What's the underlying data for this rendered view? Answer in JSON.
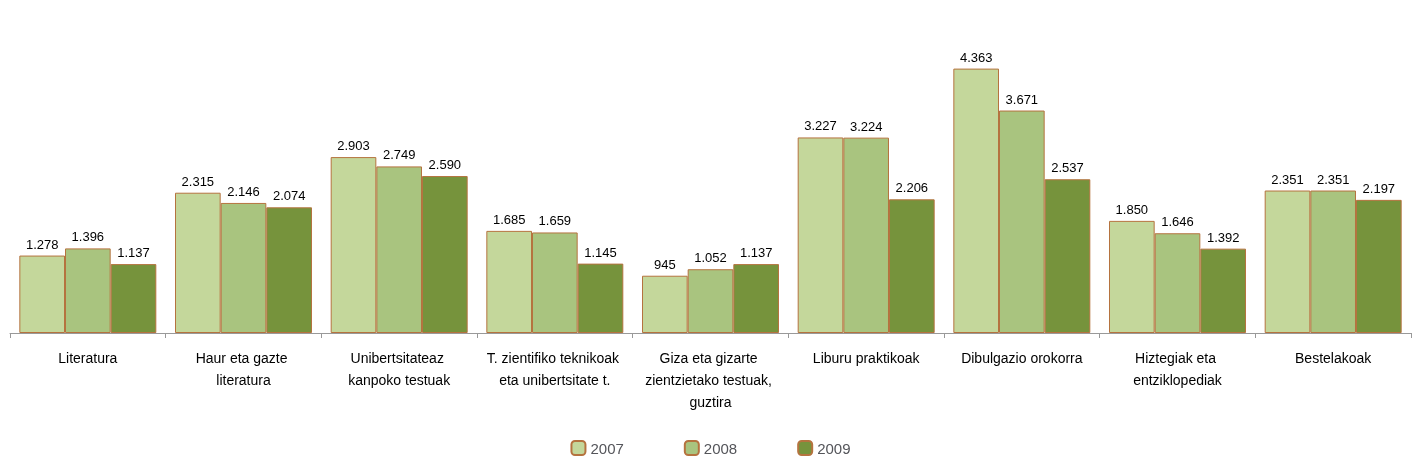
{
  "chart_data": {
    "type": "bar",
    "categories": [
      "Literatura",
      "Haur eta gazte literatura",
      "Unibertsitateaz kanpoko testuak",
      "T. zientifiko teknikoak eta unibertsitate t.",
      "Giza eta gizarte zientzietako testuak, guztira",
      "Liburu praktikoak",
      "Dibulgazio orokorra",
      "Hiztegiak eta entziklopediak",
      "Bestelakoak"
    ],
    "series": [
      {
        "name": "2007",
        "color": "#c4d79b",
        "values": [
          1278,
          2315,
          2903,
          1685,
          945,
          3227,
          4363,
          1850,
          2351
        ],
        "value_labels": [
          "1.278",
          "2.315",
          "2.903",
          "1.685",
          "945",
          "3.227",
          "4.363",
          "1.850",
          "2.351"
        ]
      },
      {
        "name": "2008",
        "color": "#a9c47f",
        "values": [
          1396,
          2146,
          2749,
          1659,
          1052,
          3224,
          3671,
          1646,
          2351
        ],
        "value_labels": [
          "1.396",
          "2.146",
          "2.749",
          "1.659",
          "1.052",
          "3.224",
          "3.671",
          "1.646",
          "2.351"
        ]
      },
      {
        "name": "2009",
        "color": "#76933c",
        "values": [
          1137,
          2074,
          2590,
          1145,
          1137,
          2206,
          2537,
          1392,
          2197
        ],
        "value_labels": [
          "1.137",
          "2.074",
          "2.590",
          "1.145",
          "1.137",
          "2.206",
          "2.537",
          "1.392",
          "2.197"
        ]
      }
    ],
    "legend": "bottom"
  }
}
